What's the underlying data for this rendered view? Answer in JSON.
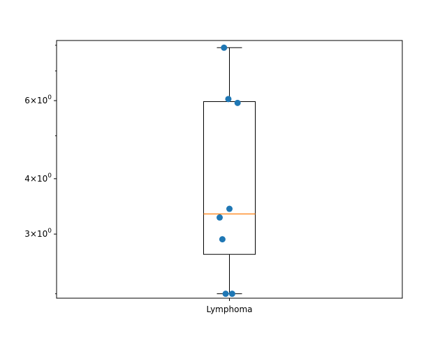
{
  "chart_data": {
    "type": "box",
    "title": "",
    "xlabel": "",
    "ylabel": "",
    "y_scale": "log",
    "ylim": [
      2.15,
      8.2
    ],
    "categories": [
      "Lymphoma"
    ],
    "y_ticks": [
      {
        "value": 3,
        "base": "3",
        "exp": "0"
      },
      {
        "value": 4,
        "base": "4",
        "exp": "0"
      },
      {
        "value": 6,
        "base": "6",
        "exp": "0"
      }
    ],
    "y_minor_ticks": [
      2.2,
      5,
      7,
      8
    ],
    "box": {
      "whisker_low": 2.2,
      "q1": 2.7,
      "median": 3.33,
      "q3": 5.97,
      "whisker_high": 7.9
    },
    "points": [
      {
        "jitter": -0.1,
        "y": 7.9
      },
      {
        "jitter": -0.02,
        "y": 6.05
      },
      {
        "jitter": 0.15,
        "y": 5.93
      },
      {
        "jitter": 0.0,
        "y": 3.42
      },
      {
        "jitter": -0.18,
        "y": 3.27
      },
      {
        "jitter": -0.13,
        "y": 2.92
      },
      {
        "jitter": -0.07,
        "y": 2.2
      },
      {
        "jitter": 0.05,
        "y": 2.2
      }
    ],
    "colors": {
      "points": "#1f77b4",
      "median": "#ff7f0e",
      "box": "#000000"
    }
  }
}
